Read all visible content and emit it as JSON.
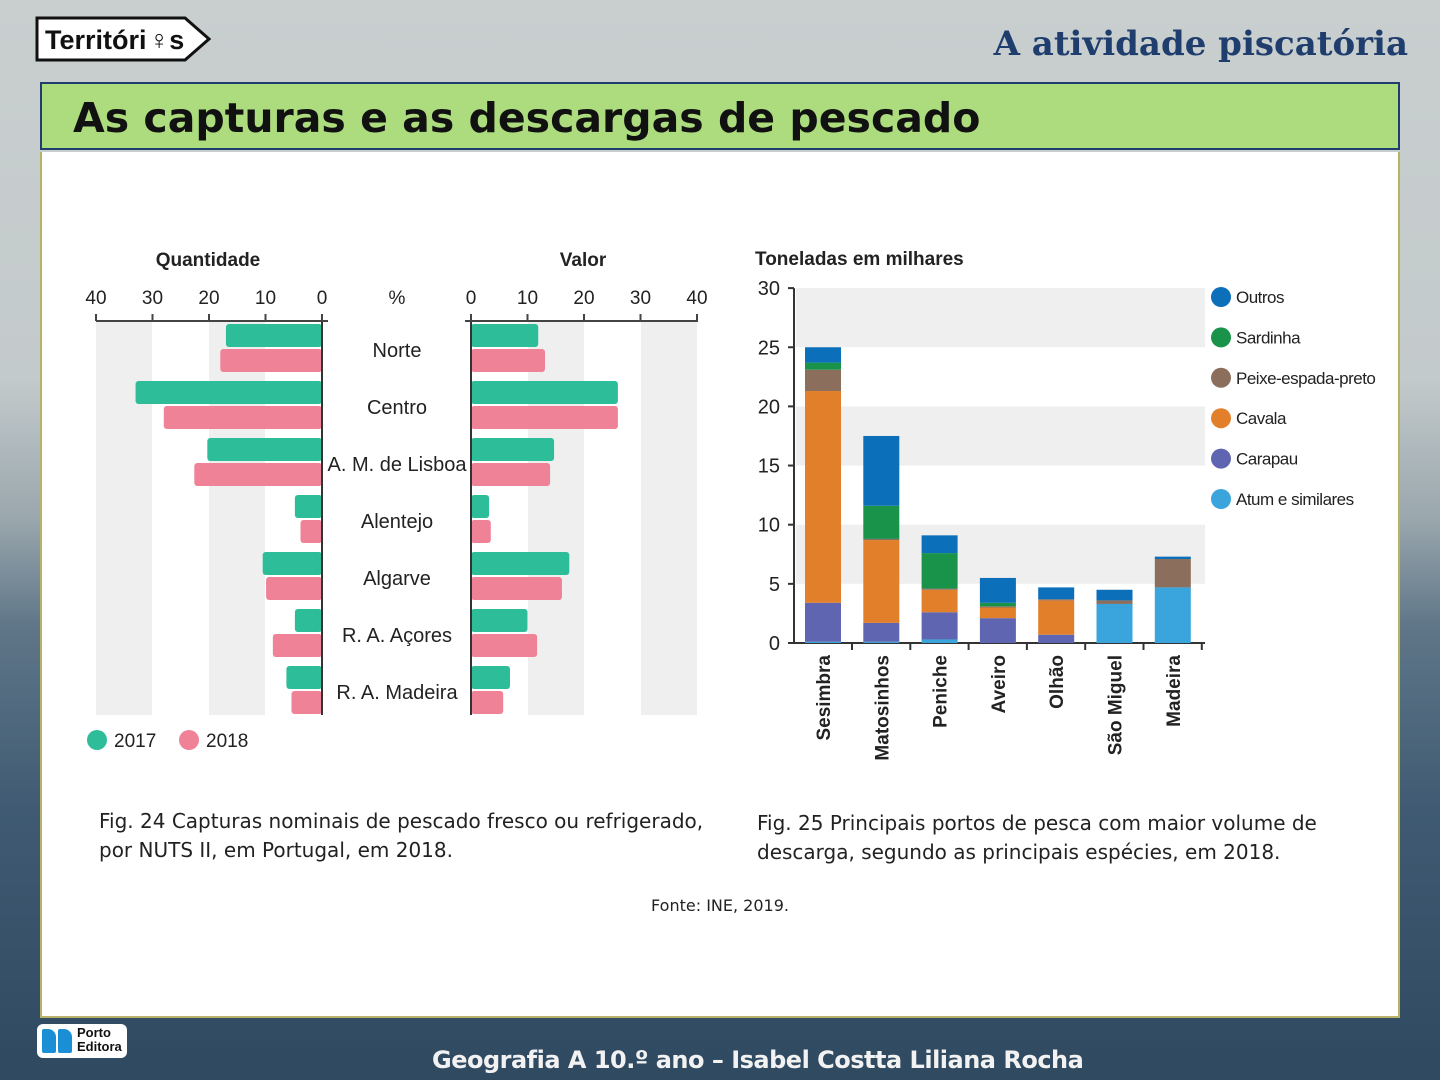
{
  "brand": {
    "logo_text": "Territórios",
    "publisher": "Porto Editora"
  },
  "subject_title": "A atividade piscatória",
  "page_title": "As capturas e as descargas de pescado",
  "chart_data": [
    {
      "type": "bar",
      "orientation": "horizontal-butterfly",
      "left_title": "Quantidade",
      "right_title": "Valor",
      "unit_label": "%",
      "categories": [
        "Norte",
        "Centro",
        "A. M. de Lisboa",
        "Alentejo",
        "Algarve",
        "R. A. Açores",
        "R. A. Madeira"
      ],
      "left_ticks": [
        "40",
        "30",
        "20",
        "10",
        "0"
      ],
      "right_ticks": [
        "0",
        "10",
        "20",
        "30",
        "40"
      ],
      "xlim": [
        0,
        40
      ],
      "grid": "alternating bands",
      "legend": "bottom-left",
      "series": [
        {
          "name": "2017",
          "color": "#2dbd98",
          "quantidade": [
            17,
            33,
            20.3,
            4.8,
            10.5,
            4.8,
            6.3
          ],
          "valor": [
            11.9,
            26,
            14.7,
            3.2,
            17.4,
            10,
            6.9
          ]
        },
        {
          "name": "2018",
          "color": "#ef8296",
          "quantidade": [
            18,
            28,
            22.6,
            3.8,
            9.9,
            8.7,
            5.4
          ],
          "valor": [
            13.1,
            26,
            14,
            3.5,
            16.1,
            11.7,
            5.7
          ]
        }
      ],
      "caption": [
        "Fig. 24  Capturas nominais de pescado fresco ou refrigerado,",
        "por NUTS II, em Portugal, em 2018."
      ]
    },
    {
      "type": "bar",
      "stacked": true,
      "ylabel": "Toneladas em milhares",
      "ylim": [
        0,
        30
      ],
      "yticks": [
        "0",
        "5",
        "10",
        "15",
        "20",
        "25",
        "30"
      ],
      "categories": [
        "Sesimbra",
        "Matosinhos",
        "Peniche",
        "Aveiro",
        "Olhão",
        "São Miguel",
        "Madeira"
      ],
      "grid": "alternating bands",
      "legend": "right",
      "series": [
        {
          "name": "Atum e similares",
          "color": "#3aa4dc",
          "values": [
            0.1,
            0.1,
            0.3,
            0,
            0,
            3.3,
            4.7
          ]
        },
        {
          "name": "Carapau",
          "color": "#5f65b0",
          "values": [
            3.3,
            1.6,
            2.3,
            2.1,
            0.7,
            0,
            0
          ]
        },
        {
          "name": "Cavala",
          "color": "#e27f2a",
          "values": [
            17.9,
            7.0,
            1.9,
            0.9,
            2.9,
            0,
            0
          ]
        },
        {
          "name": "Peixe-espada-preto",
          "color": "#8b6f5c",
          "values": [
            1.8,
            0.1,
            0.1,
            0.1,
            0.1,
            0.3,
            2.4
          ]
        },
        {
          "name": "Sardinha",
          "color": "#19924a",
          "values": [
            0.6,
            2.8,
            3.0,
            0.3,
            0,
            0,
            0
          ]
        },
        {
          "name": "Outros",
          "color": "#0b6fba",
          "values": [
            1.3,
            5.9,
            1.5,
            2.1,
            1.0,
            0.9,
            0.2
          ]
        }
      ],
      "caption": [
        "Fig. 25  Principais portos de pesca com maior volume de",
        "descarga, segundo as principais espécies, em 2018."
      ]
    }
  ],
  "source": "Fonte: INE, 2019.",
  "footer": "Geografia A 10.º ano – Isabel Costta  Liliana Rocha"
}
